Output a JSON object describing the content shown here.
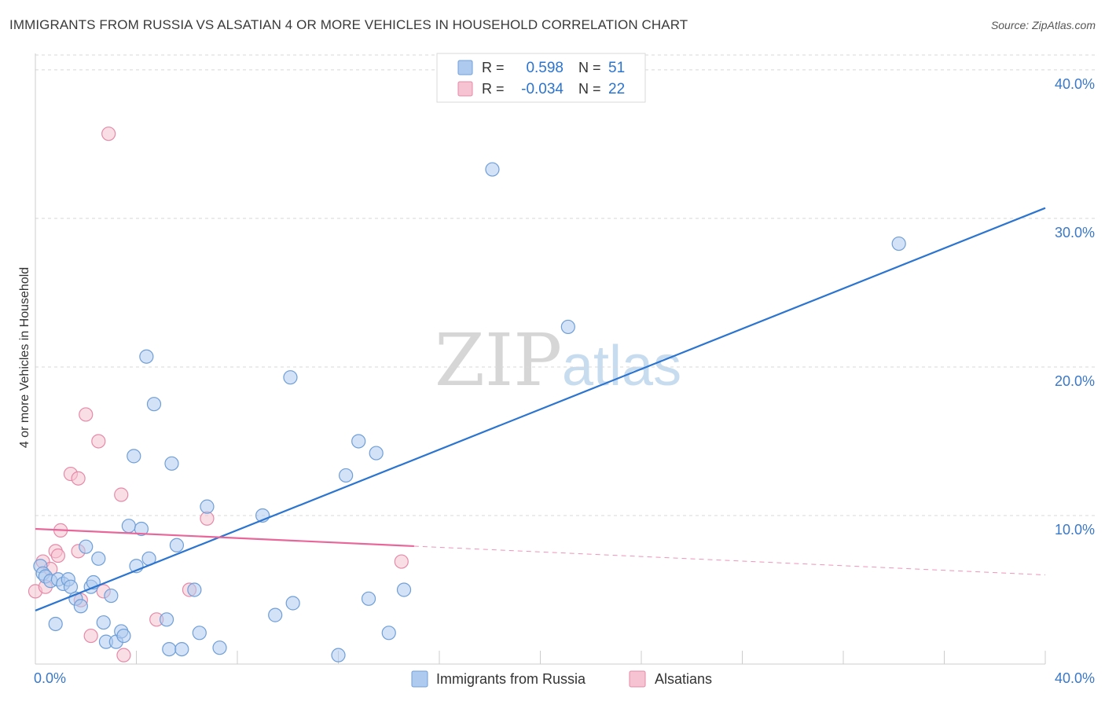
{
  "title": "IMMIGRANTS FROM RUSSIA VS ALSATIAN 4 OR MORE VEHICLES IN HOUSEHOLD CORRELATION CHART",
  "source": "Source: ZipAtlas.com",
  "watermark": {
    "zip": "ZIP",
    "atlas": "atlas"
  },
  "colors": {
    "blue_fill": "#aecbef",
    "blue_stroke": "#6f9fd8",
    "blue_line": "#2b74d0",
    "pink_fill": "#f6c3d2",
    "pink_stroke": "#e58aa8",
    "pink_line": "#e8679a",
    "axis_text": "#3a78c8",
    "grid": "#d8d8d8"
  },
  "legend": {
    "rows": [
      {
        "r_label": "R =",
        "r_value": "0.598",
        "n_label": "N =",
        "n_value": "51"
      },
      {
        "r_label": "R =",
        "r_value": "-0.034",
        "n_label": "N =",
        "n_value": "22"
      }
    ]
  },
  "bottom_legend": [
    "Immigrants from Russia",
    "Alsatians"
  ],
  "chart_data": {
    "type": "scatter",
    "title": "IMMIGRANTS FROM RUSSIA VS ALSATIAN 4 OR MORE VEHICLES IN HOUSEHOLD CORRELATION CHART",
    "xlabel": "",
    "ylabel": "4 or more Vehicles in Household",
    "xlim": [
      0,
      40
    ],
    "ylim": [
      0,
      41
    ],
    "x_tick_labels": [
      "0.0%",
      "40.0%"
    ],
    "y_ticks": [
      10,
      20,
      30,
      40
    ],
    "y_tick_labels": [
      "10.0%",
      "20.0%",
      "30.0%",
      "40.0%"
    ],
    "grid": true,
    "series": [
      {
        "name": "Immigrants from Russia",
        "R": 0.598,
        "N": 51,
        "trend": {
          "x0": 0,
          "y0": 3.6,
          "x1": 40,
          "y1": 30.7,
          "solid_to": 40
        },
        "points": [
          [
            0.2,
            6.6
          ],
          [
            0.3,
            6.1
          ],
          [
            0.4,
            5.9
          ],
          [
            0.6,
            5.6
          ],
          [
            0.8,
            2.7
          ],
          [
            0.9,
            5.7
          ],
          [
            1.1,
            5.4
          ],
          [
            1.3,
            5.7
          ],
          [
            1.4,
            5.2
          ],
          [
            1.6,
            4.4
          ],
          [
            1.8,
            3.9
          ],
          [
            2.0,
            7.9
          ],
          [
            2.2,
            5.2
          ],
          [
            2.3,
            5.5
          ],
          [
            2.5,
            7.1
          ],
          [
            2.7,
            2.8
          ],
          [
            2.8,
            1.5
          ],
          [
            3.0,
            4.6
          ],
          [
            3.2,
            1.5
          ],
          [
            3.4,
            2.2
          ],
          [
            3.5,
            1.9
          ],
          [
            3.7,
            9.3
          ],
          [
            3.9,
            14.0
          ],
          [
            4.0,
            6.6
          ],
          [
            4.2,
            9.1
          ],
          [
            4.4,
            20.7
          ],
          [
            4.5,
            7.1
          ],
          [
            4.7,
            17.5
          ],
          [
            5.2,
            3.0
          ],
          [
            5.3,
            1.0
          ],
          [
            5.4,
            13.5
          ],
          [
            5.6,
            8.0
          ],
          [
            5.8,
            1.0
          ],
          [
            6.3,
            5.0
          ],
          [
            6.5,
            2.1
          ],
          [
            6.8,
            10.6
          ],
          [
            7.3,
            1.1
          ],
          [
            9.0,
            10.0
          ],
          [
            9.5,
            3.3
          ],
          [
            10.1,
            19.3
          ],
          [
            10.2,
            4.1
          ],
          [
            12.0,
            0.6
          ],
          [
            12.3,
            12.7
          ],
          [
            12.8,
            15.0
          ],
          [
            13.2,
            4.4
          ],
          [
            13.5,
            14.2
          ],
          [
            14.0,
            2.1
          ],
          [
            14.6,
            5.0
          ],
          [
            18.1,
            33.3
          ],
          [
            21.1,
            22.7
          ],
          [
            34.2,
            28.3
          ]
        ]
      },
      {
        "name": "Alsatians",
        "R": -0.034,
        "N": 22,
        "trend": {
          "x0": 0,
          "y0": 9.1,
          "x1": 40,
          "y1": 6.0,
          "solid_to": 15
        },
        "points": [
          [
            0.0,
            4.9
          ],
          [
            0.3,
            6.9
          ],
          [
            0.4,
            5.2
          ],
          [
            0.6,
            6.4
          ],
          [
            0.8,
            7.6
          ],
          [
            0.9,
            7.3
          ],
          [
            1.0,
            9.0
          ],
          [
            1.4,
            12.8
          ],
          [
            1.7,
            12.5
          ],
          [
            1.7,
            7.6
          ],
          [
            1.8,
            4.3
          ],
          [
            2.0,
            16.8
          ],
          [
            2.2,
            1.9
          ],
          [
            2.5,
            15.0
          ],
          [
            2.7,
            4.9
          ],
          [
            2.9,
            35.7
          ],
          [
            3.4,
            11.4
          ],
          [
            3.5,
            0.6
          ],
          [
            4.8,
            3.0
          ],
          [
            6.1,
            5.0
          ],
          [
            6.8,
            9.8
          ],
          [
            14.5,
            6.9
          ]
        ]
      }
    ]
  }
}
